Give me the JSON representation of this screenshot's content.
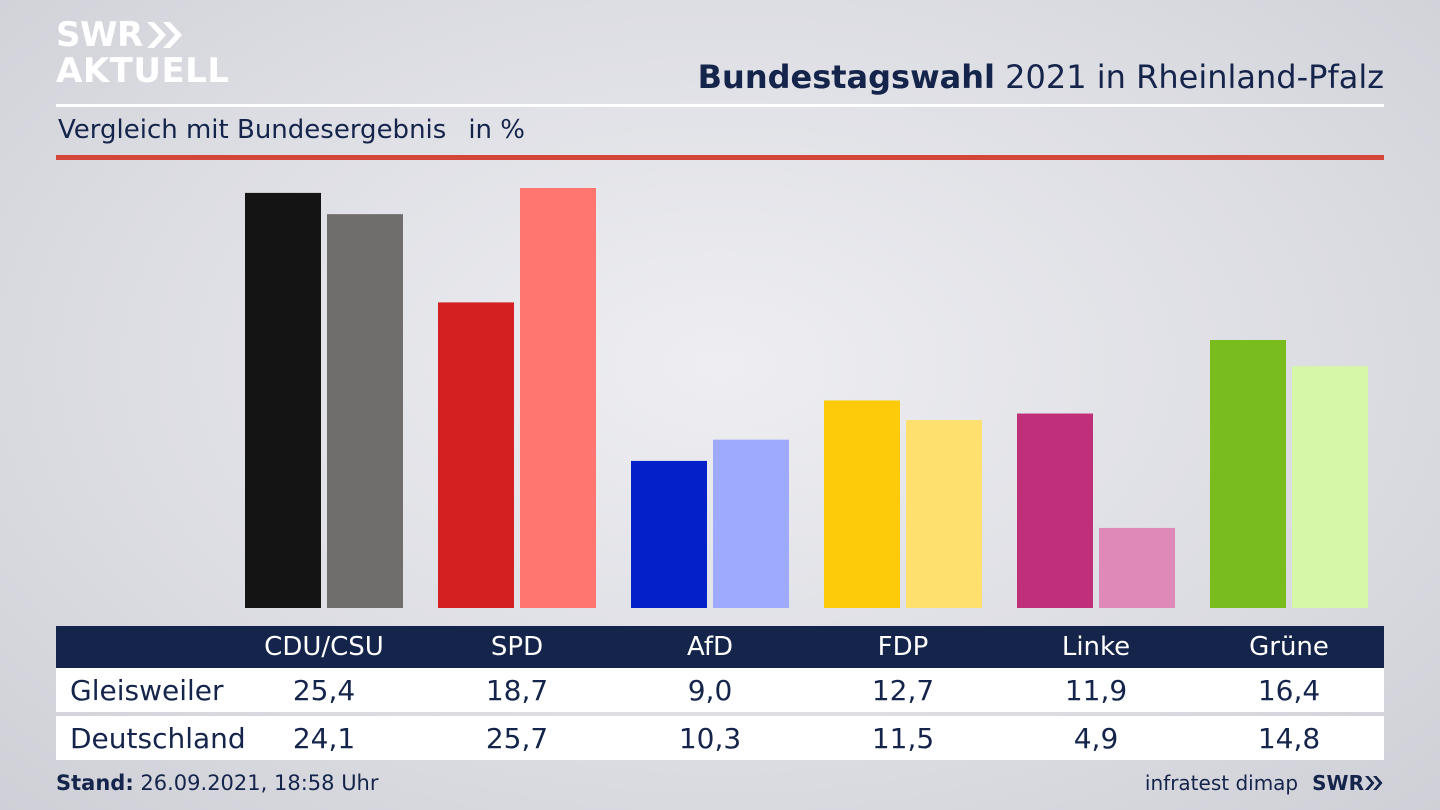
{
  "logo": {
    "line1": "SWR",
    "line2": "AKTUELL"
  },
  "header": {
    "title_bold": "Bundestagswahl",
    "title_rest": "2021 in Rheinland-Pfalz"
  },
  "subtitle": {
    "text": "Vergleich mit Bundesergebnis",
    "unit": "in %"
  },
  "footer": {
    "stand_label": "Stand:",
    "stand_value": "26.09.2021, 18:58 Uhr",
    "source": "infratest dimap",
    "brand": "SWR"
  },
  "chart_data": {
    "type": "bar",
    "title": "Bundestagswahl 2021 in Rheinland-Pfalz",
    "subtitle": "Vergleich mit Bundesergebnis",
    "unit": "in %",
    "categories": [
      "CDU/CSU",
      "SPD",
      "AfD",
      "FDP",
      "Linke",
      "Grüne"
    ],
    "series": [
      {
        "name": "Gleisweiler",
        "values": [
          25.4,
          18.7,
          9.0,
          12.7,
          11.9,
          16.4
        ],
        "labels": [
          "25,4",
          "18,7",
          "9,0",
          "12,7",
          "11,9",
          "16,4"
        ],
        "colors": [
          "#141414",
          "#d42020",
          "#0420c8",
          "#fecb0a",
          "#c0307a",
          "#79bc1e"
        ]
      },
      {
        "name": "Deutschland",
        "values": [
          24.1,
          25.7,
          10.3,
          11.5,
          4.9,
          14.8
        ],
        "labels": [
          "24,1",
          "25,7",
          "10,3",
          "11,5",
          "4,9",
          "14,8"
        ],
        "colors": [
          "#6f6e6c",
          "#ff756f",
          "#9eaafe",
          "#fee06e",
          "#df89b9",
          "#d6f6a8"
        ]
      }
    ],
    "ylim": [
      0,
      25.7
    ],
    "grid": false,
    "legend": "table-below"
  }
}
